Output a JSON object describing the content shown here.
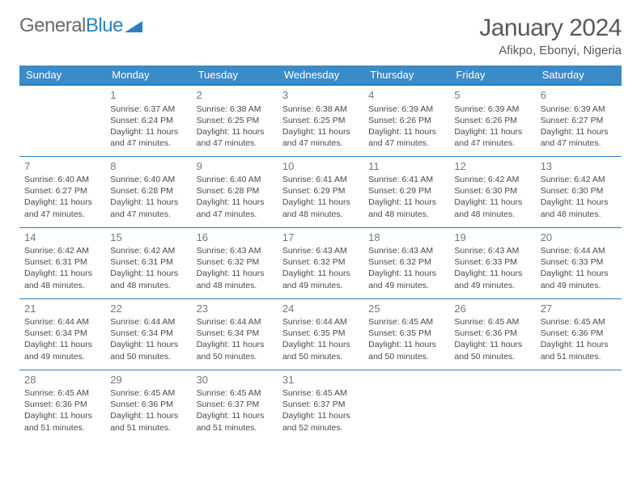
{
  "logo": {
    "text1": "General",
    "text2": "Blue"
  },
  "title": "January 2024",
  "location": "Afikpo, Ebonyi, Nigeria",
  "colors": {
    "header_bg": "#3b8bc9",
    "header_text": "#ffffff",
    "border": "#2d7fc1",
    "text": "#4a4a4a",
    "title_color": "#595959",
    "logo_gray": "#6a6a6a",
    "logo_blue": "#2d7fc1",
    "background": "#ffffff"
  },
  "fonts": {
    "title_size": 30,
    "location_size": 15,
    "header_size": 13,
    "daynum_size": 13,
    "body_size": 10.5
  },
  "weekdays": [
    "Sunday",
    "Monday",
    "Tuesday",
    "Wednesday",
    "Thursday",
    "Friday",
    "Saturday"
  ],
  "weeks": [
    [
      {
        "day": "",
        "lines": [
          "",
          "",
          "",
          ""
        ]
      },
      {
        "day": "1",
        "lines": [
          "Sunrise: 6:37 AM",
          "Sunset: 6:24 PM",
          "Daylight: 11 hours",
          "and 47 minutes."
        ]
      },
      {
        "day": "2",
        "lines": [
          "Sunrise: 6:38 AM",
          "Sunset: 6:25 PM",
          "Daylight: 11 hours",
          "and 47 minutes."
        ]
      },
      {
        "day": "3",
        "lines": [
          "Sunrise: 6:38 AM",
          "Sunset: 6:25 PM",
          "Daylight: 11 hours",
          "and 47 minutes."
        ]
      },
      {
        "day": "4",
        "lines": [
          "Sunrise: 6:39 AM",
          "Sunset: 6:26 PM",
          "Daylight: 11 hours",
          "and 47 minutes."
        ]
      },
      {
        "day": "5",
        "lines": [
          "Sunrise: 6:39 AM",
          "Sunset: 6:26 PM",
          "Daylight: 11 hours",
          "and 47 minutes."
        ]
      },
      {
        "day": "6",
        "lines": [
          "Sunrise: 6:39 AM",
          "Sunset: 6:27 PM",
          "Daylight: 11 hours",
          "and 47 minutes."
        ]
      }
    ],
    [
      {
        "day": "7",
        "lines": [
          "Sunrise: 6:40 AM",
          "Sunset: 6:27 PM",
          "Daylight: 11 hours",
          "and 47 minutes."
        ]
      },
      {
        "day": "8",
        "lines": [
          "Sunrise: 6:40 AM",
          "Sunset: 6:28 PM",
          "Daylight: 11 hours",
          "and 47 minutes."
        ]
      },
      {
        "day": "9",
        "lines": [
          "Sunrise: 6:40 AM",
          "Sunset: 6:28 PM",
          "Daylight: 11 hours",
          "and 47 minutes."
        ]
      },
      {
        "day": "10",
        "lines": [
          "Sunrise: 6:41 AM",
          "Sunset: 6:29 PM",
          "Daylight: 11 hours",
          "and 48 minutes."
        ]
      },
      {
        "day": "11",
        "lines": [
          "Sunrise: 6:41 AM",
          "Sunset: 6:29 PM",
          "Daylight: 11 hours",
          "and 48 minutes."
        ]
      },
      {
        "day": "12",
        "lines": [
          "Sunrise: 6:42 AM",
          "Sunset: 6:30 PM",
          "Daylight: 11 hours",
          "and 48 minutes."
        ]
      },
      {
        "day": "13",
        "lines": [
          "Sunrise: 6:42 AM",
          "Sunset: 6:30 PM",
          "Daylight: 11 hours",
          "and 48 minutes."
        ]
      }
    ],
    [
      {
        "day": "14",
        "lines": [
          "Sunrise: 6:42 AM",
          "Sunset: 6:31 PM",
          "Daylight: 11 hours",
          "and 48 minutes."
        ]
      },
      {
        "day": "15",
        "lines": [
          "Sunrise: 6:42 AM",
          "Sunset: 6:31 PM",
          "Daylight: 11 hours",
          "and 48 minutes."
        ]
      },
      {
        "day": "16",
        "lines": [
          "Sunrise: 6:43 AM",
          "Sunset: 6:32 PM",
          "Daylight: 11 hours",
          "and 48 minutes."
        ]
      },
      {
        "day": "17",
        "lines": [
          "Sunrise: 6:43 AM",
          "Sunset: 6:32 PM",
          "Daylight: 11 hours",
          "and 49 minutes."
        ]
      },
      {
        "day": "18",
        "lines": [
          "Sunrise: 6:43 AM",
          "Sunset: 6:32 PM",
          "Daylight: 11 hours",
          "and 49 minutes."
        ]
      },
      {
        "day": "19",
        "lines": [
          "Sunrise: 6:43 AM",
          "Sunset: 6:33 PM",
          "Daylight: 11 hours",
          "and 49 minutes."
        ]
      },
      {
        "day": "20",
        "lines": [
          "Sunrise: 6:44 AM",
          "Sunset: 6:33 PM",
          "Daylight: 11 hours",
          "and 49 minutes."
        ]
      }
    ],
    [
      {
        "day": "21",
        "lines": [
          "Sunrise: 6:44 AM",
          "Sunset: 6:34 PM",
          "Daylight: 11 hours",
          "and 49 minutes."
        ]
      },
      {
        "day": "22",
        "lines": [
          "Sunrise: 6:44 AM",
          "Sunset: 6:34 PM",
          "Daylight: 11 hours",
          "and 50 minutes."
        ]
      },
      {
        "day": "23",
        "lines": [
          "Sunrise: 6:44 AM",
          "Sunset: 6:34 PM",
          "Daylight: 11 hours",
          "and 50 minutes."
        ]
      },
      {
        "day": "24",
        "lines": [
          "Sunrise: 6:44 AM",
          "Sunset: 6:35 PM",
          "Daylight: 11 hours",
          "and 50 minutes."
        ]
      },
      {
        "day": "25",
        "lines": [
          "Sunrise: 6:45 AM",
          "Sunset: 6:35 PM",
          "Daylight: 11 hours",
          "and 50 minutes."
        ]
      },
      {
        "day": "26",
        "lines": [
          "Sunrise: 6:45 AM",
          "Sunset: 6:36 PM",
          "Daylight: 11 hours",
          "and 50 minutes."
        ]
      },
      {
        "day": "27",
        "lines": [
          "Sunrise: 6:45 AM",
          "Sunset: 6:36 PM",
          "Daylight: 11 hours",
          "and 51 minutes."
        ]
      }
    ],
    [
      {
        "day": "28",
        "lines": [
          "Sunrise: 6:45 AM",
          "Sunset: 6:36 PM",
          "Daylight: 11 hours",
          "and 51 minutes."
        ]
      },
      {
        "day": "29",
        "lines": [
          "Sunrise: 6:45 AM",
          "Sunset: 6:36 PM",
          "Daylight: 11 hours",
          "and 51 minutes."
        ]
      },
      {
        "day": "30",
        "lines": [
          "Sunrise: 6:45 AM",
          "Sunset: 6:37 PM",
          "Daylight: 11 hours",
          "and 51 minutes."
        ]
      },
      {
        "day": "31",
        "lines": [
          "Sunrise: 6:45 AM",
          "Sunset: 6:37 PM",
          "Daylight: 11 hours",
          "and 52 minutes."
        ]
      },
      {
        "day": "",
        "lines": [
          "",
          "",
          "",
          ""
        ]
      },
      {
        "day": "",
        "lines": [
          "",
          "",
          "",
          ""
        ]
      },
      {
        "day": "",
        "lines": [
          "",
          "",
          "",
          ""
        ]
      }
    ]
  ]
}
